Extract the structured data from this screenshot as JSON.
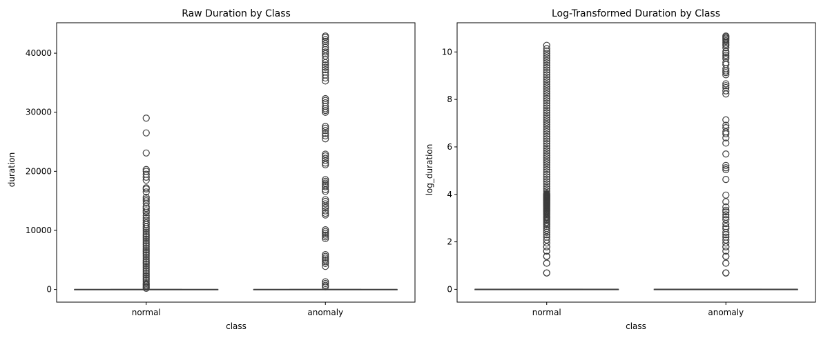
{
  "chart_data": [
    {
      "type": "box",
      "title": "Raw Duration by Class",
      "xlabel": "class",
      "ylabel": "duration",
      "categories": [
        "normal",
        "anomaly"
      ],
      "ylim": [
        -2150,
        45150
      ],
      "yticks": [
        0,
        10000,
        20000,
        30000,
        40000
      ],
      "boxes": [
        {
          "category": "normal",
          "q1": 0,
          "median": 0,
          "q3": 0,
          "whisker_low": 0,
          "whisker_high": 0
        },
        {
          "category": "anomaly",
          "q1": 0,
          "median": 0,
          "q3": 0,
          "whisker_low": 0,
          "whisker_high": 0
        }
      ],
      "outliers": {
        "normal": [
          29000,
          26500,
          23100,
          20300,
          20000,
          19500,
          19000,
          18500,
          17200,
          17000,
          16500,
          15600,
          15300,
          15000,
          14600,
          14000,
          13700,
          13300,
          13000,
          12500,
          12100,
          11700,
          11300,
          11000,
          10600,
          10300,
          10000,
          9700,
          9400,
          9100,
          8800,
          8500,
          8200,
          7900,
          7600,
          7300,
          7000,
          6700,
          6400,
          6100,
          5800,
          5500,
          5200,
          4900,
          4600,
          4300,
          4000,
          3700,
          3400,
          3100,
          2800,
          2500,
          2200,
          1900,
          1600,
          1300,
          1000,
          800,
          600,
          400,
          200
        ],
        "anomaly": [
          42900,
          42700,
          42300,
          42000,
          41600,
          41000,
          40600,
          40200,
          39900,
          39500,
          38900,
          38400,
          38000,
          37600,
          37200,
          36800,
          36300,
          35800,
          35300,
          32300,
          32000,
          31600,
          31000,
          30600,
          30300,
          30000,
          27600,
          27300,
          26900,
          26400,
          26000,
          25500,
          22900,
          22600,
          22200,
          21800,
          21400,
          21100,
          18600,
          18300,
          18000,
          17700,
          17400,
          16900,
          16600,
          15200,
          14900,
          14500,
          14100,
          13800,
          13300,
          12900,
          12600,
          10100,
          9800,
          9500,
          9200,
          8900,
          8600,
          5900,
          5600,
          5300,
          5000,
          4700,
          4400,
          3900,
          1300,
          1000,
          700,
          450
        ]
      }
    },
    {
      "type": "box",
      "title": "Log-Transformed Duration by Class",
      "xlabel": "class",
      "ylabel": "log_duration",
      "categories": [
        "normal",
        "anomaly"
      ],
      "ylim": [
        -0.54,
        11.23
      ],
      "yticks": [
        0,
        2,
        4,
        6,
        8,
        10
      ],
      "boxes": [
        {
          "category": "normal",
          "q1": 0,
          "median": 0,
          "q3": 0,
          "whisker_low": 0,
          "whisker_high": 0
        },
        {
          "category": "anomaly",
          "q1": 0,
          "median": 0,
          "q3": 0,
          "whisker_low": 0,
          "whisker_high": 0
        }
      ],
      "outliers": {
        "normal": [
          0.69,
          0.69,
          1.1,
          1.1,
          1.39,
          1.39,
          1.61,
          1.61,
          1.79,
          1.79,
          1.95,
          2.08,
          2.2,
          2.3,
          2.4,
          2.48,
          2.56,
          2.64,
          2.71,
          2.77,
          2.83,
          2.89,
          2.94,
          3.0,
          3.04,
          3.09,
          3.14,
          3.18,
          3.22,
          3.26,
          3.3,
          3.33,
          3.37,
          3.4,
          3.43,
          3.47,
          3.5,
          3.53,
          3.56,
          3.58,
          3.61,
          3.64,
          3.66,
          3.69,
          3.71,
          3.74,
          3.76,
          3.78,
          3.81,
          3.83,
          3.85,
          3.87,
          3.89,
          3.91,
          3.93,
          3.95,
          3.97,
          3.99,
          4.01,
          4.04,
          4.14,
          4.24,
          4.34,
          4.44,
          4.54,
          4.64,
          4.74,
          4.84,
          4.94,
          5.04,
          5.14,
          5.24,
          5.34,
          5.44,
          5.54,
          5.64,
          5.74,
          5.84,
          5.94,
          6.04,
          6.14,
          6.24,
          6.34,
          6.44,
          6.54,
          6.64,
          6.74,
          6.84,
          6.94,
          7.04,
          7.14,
          7.24,
          7.34,
          7.44,
          7.54,
          7.64,
          7.74,
          7.84,
          7.94,
          8.04,
          8.14,
          8.24,
          8.34,
          8.44,
          8.54,
          8.64,
          8.74,
          8.84,
          8.94,
          9.04,
          9.14,
          9.24,
          9.34,
          9.44,
          9.54,
          9.64,
          9.74,
          9.84,
          9.94,
          10.04,
          10.14,
          10.28
        ],
        "anomaly": [
          0.69,
          0.69,
          0.69,
          1.1,
          1.1,
          1.39,
          1.39,
          1.61,
          1.79,
          1.79,
          1.95,
          2.08,
          2.2,
          2.3,
          2.4,
          2.56,
          2.64,
          2.77,
          2.94,
          3.04,
          3.14,
          3.26,
          3.33,
          3.47,
          3.69,
          3.97,
          4.63,
          5.04,
          5.12,
          5.22,
          5.7,
          6.16,
          6.38,
          6.55,
          6.63,
          6.81,
          6.91,
          7.14,
          8.23,
          8.36,
          8.5,
          8.58,
          8.66,
          9.04,
          9.13,
          9.2,
          9.29,
          9.47,
          9.55,
          9.72,
          9.79,
          9.86,
          9.95,
          10.02,
          10.18,
          10.27,
          10.33,
          10.4,
          10.47,
          10.53,
          10.58,
          10.63,
          10.67
        ]
      }
    }
  ]
}
